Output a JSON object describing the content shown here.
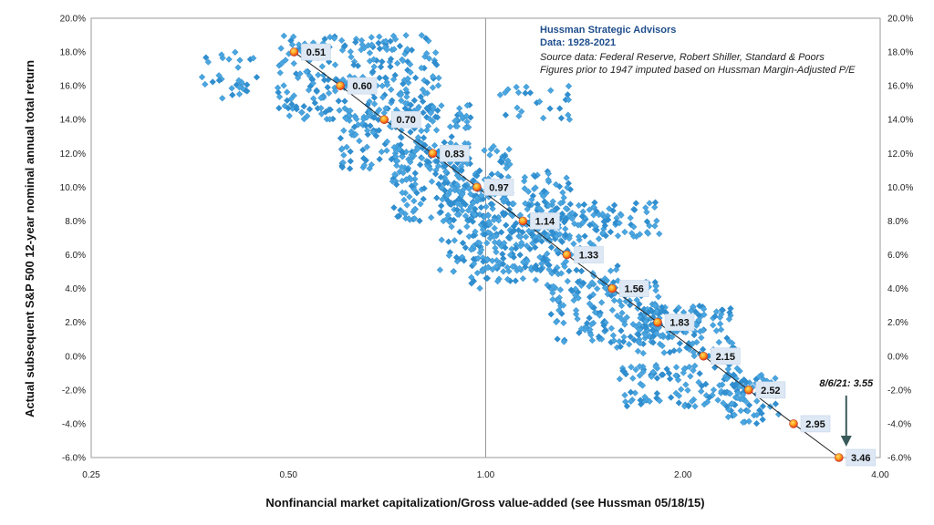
{
  "chart_data": {
    "type": "scatter",
    "x_scale": "log",
    "xlabel": "Nonfinancial market capitalization/Gross value-added (see Hussman 05/18/15)",
    "ylabel": "Actual subsequent S&P 500 12-year nominal annual total return",
    "xlim": [
      0.25,
      4.0
    ],
    "ylim": [
      -6.0,
      20.0
    ],
    "x_ticks": [
      "0.25",
      "0.50",
      "1.00",
      "2.00",
      "4.00"
    ],
    "y_ticks": [
      "20.0%",
      "18.0%",
      "16.0%",
      "14.0%",
      "12.0%",
      "10.0%",
      "8.0%",
      "6.0%",
      "4.0%",
      "2.0%",
      "0.0%",
      "-2.0%",
      "-4.0%",
      "-6.0%"
    ],
    "grid": "x=1.00 vertical line only",
    "info_box": {
      "title": "Hussman Strategic Advisors",
      "subtitle": "Data: 1928-2021",
      "source": "Source data: Federal Reserve, Robert Shiller, Standard & Poors",
      "note": "Figures prior to 1947 imputed based on Hussman Margin-Adjusted P/E"
    },
    "fit_points": [
      {
        "label": "0.51",
        "x": 0.51,
        "y": 18.0
      },
      {
        "label": "0.60",
        "x": 0.6,
        "y": 16.0
      },
      {
        "label": "0.70",
        "x": 0.7,
        "y": 14.0
      },
      {
        "label": "0.83",
        "x": 0.83,
        "y": 12.0
      },
      {
        "label": "0.97",
        "x": 0.97,
        "y": 10.0
      },
      {
        "label": "1.14",
        "x": 1.14,
        "y": 8.0
      },
      {
        "label": "1.33",
        "x": 1.33,
        "y": 6.0
      },
      {
        "label": "1.56",
        "x": 1.56,
        "y": 4.0
      },
      {
        "label": "1.83",
        "x": 1.83,
        "y": 2.0
      },
      {
        "label": "2.15",
        "x": 2.15,
        "y": 0.0
      },
      {
        "label": "2.52",
        "x": 2.52,
        "y": -2.0
      },
      {
        "label": "2.95",
        "x": 2.95,
        "y": -4.0
      },
      {
        "label": "3.46",
        "x": 3.46,
        "y": -6.0
      }
    ],
    "callout": {
      "text": "8/6/21: 3.55",
      "x": 3.55,
      "y": -6.0
    },
    "scatter_clusters": [
      {
        "x_min": 0.36,
        "x_max": 0.45,
        "y_min": 15.2,
        "y_max": 18.0,
        "count": 30
      },
      {
        "x_min": 0.48,
        "x_max": 0.85,
        "y_min": 14.0,
        "y_max": 19.0,
        "count": 260
      },
      {
        "x_min": 0.6,
        "x_max": 0.95,
        "y_min": 11.0,
        "y_max": 15.0,
        "count": 180
      },
      {
        "x_min": 0.72,
        "x_max": 1.1,
        "y_min": 8.0,
        "y_max": 12.5,
        "count": 200
      },
      {
        "x_min": 0.85,
        "x_max": 1.35,
        "y_min": 5.0,
        "y_max": 11.0,
        "count": 220
      },
      {
        "x_min": 0.95,
        "x_max": 1.6,
        "y_min": 4.0,
        "y_max": 9.0,
        "count": 200
      },
      {
        "x_min": 1.2,
        "x_max": 1.85,
        "y_min": 7.0,
        "y_max": 9.2,
        "count": 60
      },
      {
        "x_min": 1.05,
        "x_max": 1.35,
        "y_min": 14.0,
        "y_max": 16.0,
        "count": 25
      },
      {
        "x_min": 1.25,
        "x_max": 1.85,
        "y_min": 0.5,
        "y_max": 4.5,
        "count": 160
      },
      {
        "x_min": 1.7,
        "x_max": 2.4,
        "y_min": 0.0,
        "y_max": 3.0,
        "count": 130
      },
      {
        "x_min": 1.6,
        "x_max": 2.5,
        "y_min": -3.0,
        "y_max": -0.5,
        "count": 110
      },
      {
        "x_min": 2.3,
        "x_max": 2.8,
        "y_min": -4.0,
        "y_max": -1.0,
        "count": 60
      }
    ]
  }
}
